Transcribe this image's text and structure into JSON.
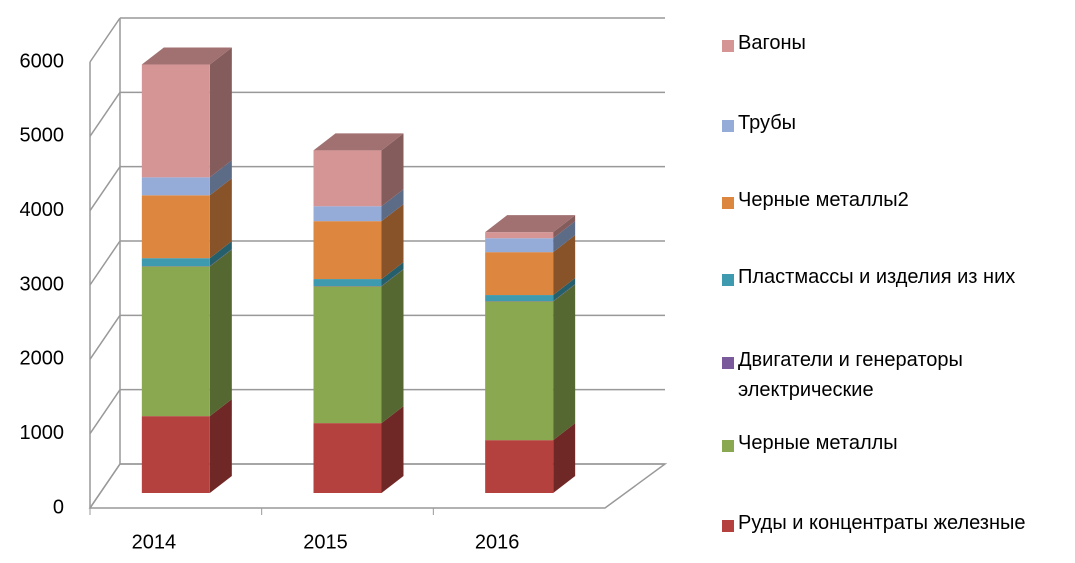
{
  "chart_data": {
    "type": "bar3d_stacked",
    "categories": [
      "2014",
      "2015",
      "2016"
    ],
    "series": [
      {
        "name": "Руды и концентраты железные",
        "color": "#b5413f",
        "values": [
          1034,
          940,
          711
        ]
      },
      {
        "name": "Черные металлы",
        "color": "#8aa84f",
        "values": [
          2013,
          1839,
          1866
        ]
      },
      {
        "name": "Двигатели и генераторы электрические",
        "color": "#7a5a9a",
        "values": [
          5,
          5,
          5
        ]
      },
      {
        "name": "Пластмассы и изделия из них",
        "color": "#3e9aae",
        "values": [
          107,
          94,
          81
        ]
      },
      {
        "name": "Черные металлы2",
        "color": "#dc8640",
        "values": [
          846,
          779,
          577
        ]
      },
      {
        "name": "Трубы",
        "color": "#95acd8",
        "values": [
          242,
          201,
          188
        ]
      },
      {
        "name": "Вагоны",
        "color": "#d69595",
        "values": [
          1517,
          752,
          81
        ]
      }
    ],
    "ylim": [
      0,
      6000
    ],
    "yticks": [
      0,
      1000,
      2000,
      3000,
      4000,
      5000,
      6000
    ],
    "grid": true
  }
}
